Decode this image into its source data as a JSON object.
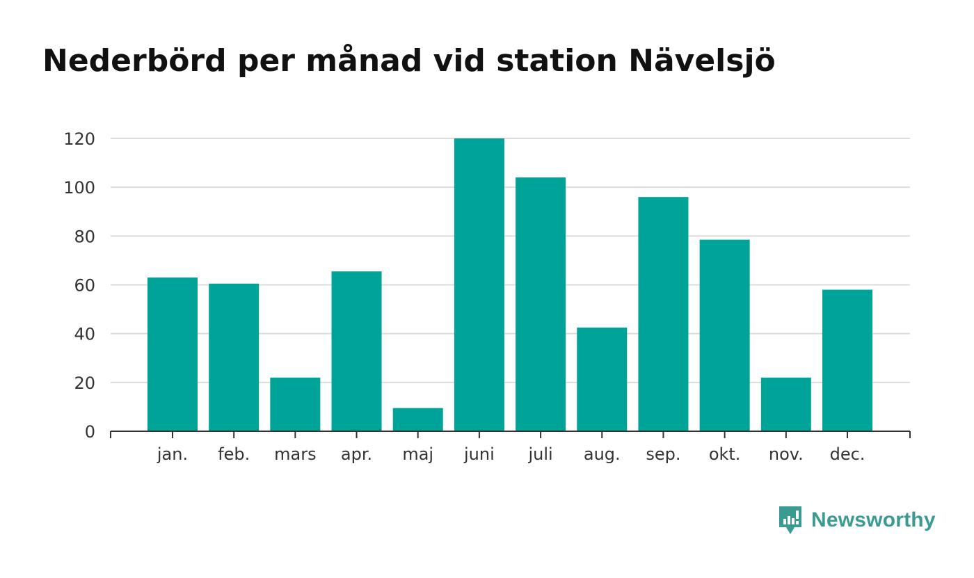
{
  "chart_data": {
    "type": "bar",
    "title": "Nederbörd per månad vid station Nävelsjö",
    "categories": [
      "jan.",
      "feb.",
      "mars",
      "apr.",
      "maj",
      "juni",
      "juli",
      "aug.",
      "sep.",
      "okt.",
      "nov.",
      "dec."
    ],
    "values": [
      63,
      60.5,
      22,
      65.5,
      9.5,
      120,
      104,
      42.5,
      96,
      78.5,
      22,
      58
    ],
    "ylim": [
      0,
      120
    ],
    "yticks": [
      0,
      20,
      40,
      60,
      80,
      100,
      120
    ],
    "grid": true,
    "bar_color": "#00a398"
  },
  "brand": {
    "name": "Newsworthy",
    "icon": "newsworthy-logo-icon",
    "color": "#3a9b93"
  }
}
